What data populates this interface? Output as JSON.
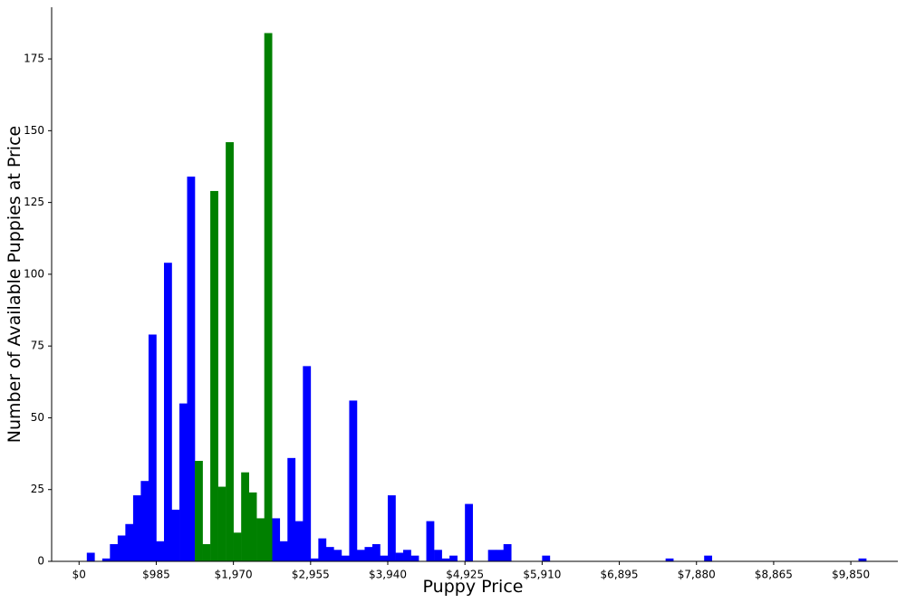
{
  "chart_data": {
    "type": "bar",
    "xlabel": "Puppy Price",
    "ylabel": "Number of Available Puppies at Price",
    "xlim": [
      -350,
      10450
    ],
    "ylim": [
      0,
      193
    ],
    "x_ticks": [
      0,
      985,
      1970,
      2955,
      3940,
      4925,
      5910,
      6895,
      7880,
      8865,
      9850
    ],
    "x_tick_labels": [
      "$0",
      "$985",
      "$1,970",
      "$2,955",
      "$3,940",
      "$4,925",
      "$5,910",
      "$6,895",
      "$7,880",
      "$8,865",
      "$9,850"
    ],
    "y_ticks": [
      0,
      25,
      50,
      75,
      100,
      125,
      150,
      175
    ],
    "y_tick_labels": [
      "0",
      "25",
      "50",
      "75",
      "100",
      "125",
      "150",
      "175"
    ],
    "bin_width": 98.5,
    "grid": false,
    "series": [
      {
        "color": "#0000ff",
        "bins": [
          {
            "x": 148,
            "y": 3
          },
          {
            "x": 345,
            "y": 1
          },
          {
            "x": 443,
            "y": 6
          },
          {
            "x": 542,
            "y": 9
          },
          {
            "x": 640,
            "y": 13
          },
          {
            "x": 739,
            "y": 23
          },
          {
            "x": 837,
            "y": 28
          },
          {
            "x": 936,
            "y": 79
          },
          {
            "x": 1034,
            "y": 7
          },
          {
            "x": 1133,
            "y": 104
          },
          {
            "x": 1231,
            "y": 18
          },
          {
            "x": 1330,
            "y": 55
          },
          {
            "x": 1428,
            "y": 134
          },
          {
            "x": 2512,
            "y": 15
          },
          {
            "x": 2610,
            "y": 7
          },
          {
            "x": 2709,
            "y": 36
          },
          {
            "x": 2807,
            "y": 14
          },
          {
            "x": 2906,
            "y": 68
          },
          {
            "x": 3004,
            "y": 1
          },
          {
            "x": 3103,
            "y": 8
          },
          {
            "x": 3201,
            "y": 5
          },
          {
            "x": 3300,
            "y": 4
          },
          {
            "x": 3398,
            "y": 2
          },
          {
            "x": 3497,
            "y": 56
          },
          {
            "x": 3595,
            "y": 4
          },
          {
            "x": 3694,
            "y": 5
          },
          {
            "x": 3792,
            "y": 6
          },
          {
            "x": 3891,
            "y": 2
          },
          {
            "x": 3989,
            "y": 23
          },
          {
            "x": 4088,
            "y": 3
          },
          {
            "x": 4186,
            "y": 4
          },
          {
            "x": 4285,
            "y": 2
          },
          {
            "x": 4481,
            "y": 14
          },
          {
            "x": 4580,
            "y": 4
          },
          {
            "x": 4678,
            "y": 1
          },
          {
            "x": 4777,
            "y": 2
          },
          {
            "x": 4974,
            "y": 20
          },
          {
            "x": 5269,
            "y": 4
          },
          {
            "x": 5368,
            "y": 4
          },
          {
            "x": 5466,
            "y": 6
          },
          {
            "x": 5959,
            "y": 2
          },
          {
            "x": 7535,
            "y": 1
          },
          {
            "x": 8027,
            "y": 2
          },
          {
            "x": 9997,
            "y": 1
          }
        ]
      },
      {
        "color": "#008000",
        "bins": [
          {
            "x": 1527,
            "y": 35
          },
          {
            "x": 1625,
            "y": 6
          },
          {
            "x": 1724,
            "y": 129
          },
          {
            "x": 1822,
            "y": 26
          },
          {
            "x": 1921,
            "y": 146
          },
          {
            "x": 2019,
            "y": 10
          },
          {
            "x": 2118,
            "y": 31
          },
          {
            "x": 2216,
            "y": 24
          },
          {
            "x": 2315,
            "y": 15
          },
          {
            "x": 2413,
            "y": 184
          }
        ]
      }
    ]
  }
}
